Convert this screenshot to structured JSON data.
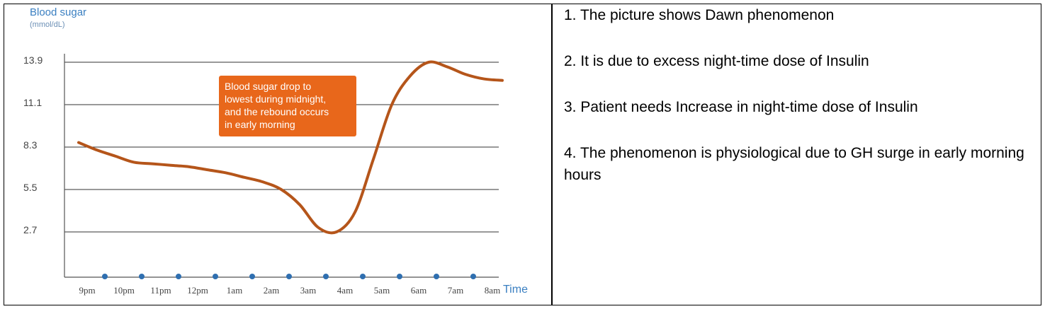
{
  "chart_data": {
    "type": "line",
    "ylabel": "Blood sugar",
    "yunit": "(mmol/dL)",
    "xlabel": "Time",
    "categories": [
      "9pm",
      "10pm",
      "11pm",
      "12pm",
      "1am",
      "2am",
      "3am",
      "4am",
      "5am",
      "6am",
      "7am",
      "8am"
    ],
    "yticks": [
      "13.9",
      "11.1",
      "8.3",
      "5.5",
      "2.7"
    ],
    "ylim": [
      0,
      13.9
    ],
    "annotation": "Blood sugar drop to lowest during midnight, and the rebound occurs in early morning",
    "series": [
      {
        "x": [
          0,
          0.5,
          1,
          1.5,
          2,
          2.5,
          3,
          3.5,
          4,
          4.5,
          5,
          5.5,
          6,
          6.5,
          7,
          7.5,
          8,
          8.5,
          9,
          9.5,
          10,
          10.5,
          11,
          11.5
        ],
        "y": [
          8.6,
          8.1,
          7.7,
          7.3,
          7.2,
          7.1,
          7.0,
          6.8,
          6.6,
          6.3,
          6.0,
          5.5,
          4.5,
          3.0,
          2.7,
          4.0,
          7.5,
          11.1,
          13.0,
          13.9,
          13.6,
          13.1,
          12.8,
          12.7
        ],
        "color": "#b5551a"
      }
    ],
    "colors": {
      "line": "#b5551a",
      "annotation_bg": "#e8671b",
      "axis_label": "#3a7fc1",
      "dots": "#2f6fb0",
      "grid": "#333333"
    }
  },
  "notes": [
    "1. The picture shows Dawn phenomenon",
    "2. It is due to excess night-time dose of Insulin",
    "3. Patient needs Increase in night-time dose of Insulin",
    "4. The phenomenon is physiological due to GH surge in early morning hours"
  ]
}
